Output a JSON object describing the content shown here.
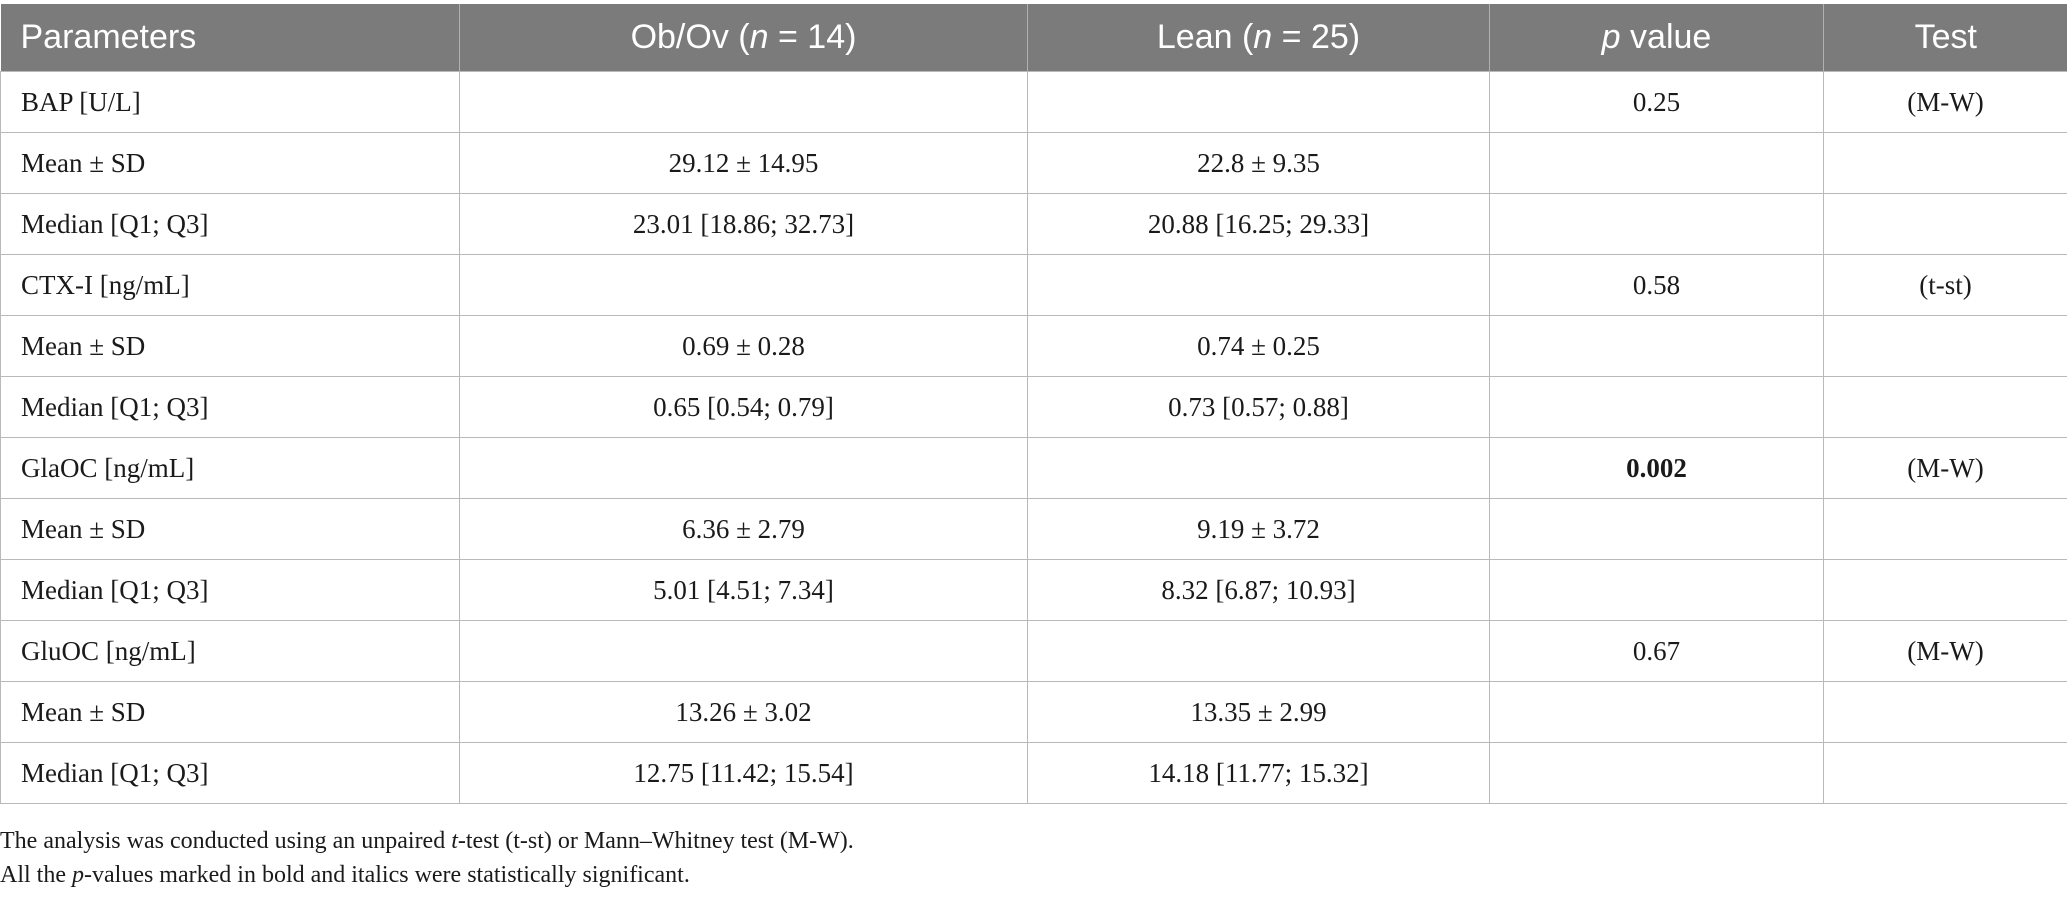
{
  "header": {
    "parameters": "Parameters",
    "g1_prefix": "Ob/Ov (",
    "g1_n": "n",
    "g1_suffix": " = 14)",
    "g2_prefix": "Lean (",
    "g2_n": "n",
    "g2_suffix": " = 25)",
    "p_italic": "p",
    "p_rest": " value",
    "test": "Test"
  },
  "rows": [
    {
      "param": "BAP [U/L]",
      "g1": "",
      "g2": "",
      "p": "0.25",
      "test": "(M-W)"
    },
    {
      "param": "Mean ± SD",
      "g1": "29.12 ± 14.95",
      "g2": "22.8 ± 9.35",
      "p": "",
      "test": ""
    },
    {
      "param": "Median [Q1; Q3]",
      "g1": "23.01 [18.86; 32.73]",
      "g2": "20.88 [16.25; 29.33]",
      "p": "",
      "test": ""
    },
    {
      "param": "CTX-I [ng/mL]",
      "g1": "",
      "g2": "",
      "p": "0.58",
      "test": "(t-st)"
    },
    {
      "param": "Mean ± SD",
      "g1": "0.69 ± 0.28",
      "g2": "0.74 ± 0.25",
      "p": "",
      "test": ""
    },
    {
      "param": "Median [Q1; Q3]",
      "g1": "0.65 [0.54; 0.79]",
      "g2": "0.73 [0.57; 0.88]",
      "p": "",
      "test": ""
    },
    {
      "param": "GlaOC [ng/mL]",
      "g1": "",
      "g2": "",
      "p": "0.002",
      "test": "(M-W)"
    },
    {
      "param": "Mean ± SD",
      "g1": "6.36 ± 2.79",
      "g2": "9.19 ± 3.72",
      "p": "",
      "test": ""
    },
    {
      "param": "Median [Q1; Q3]",
      "g1": "5.01 [4.51; 7.34]",
      "g2": "8.32 [6.87; 10.93]",
      "p": "",
      "test": ""
    },
    {
      "param": "GluOC [ng/mL]",
      "g1": "",
      "g2": "",
      "p": "0.67",
      "test": "(M-W)"
    },
    {
      "param": "Mean ± SD",
      "g1": "13.26 ± 3.02",
      "g2": "13.35 ± 2.99",
      "p": "",
      "test": ""
    },
    {
      "param": "Median [Q1; Q3]",
      "g1": "12.75 [11.42; 15.54]",
      "g2": "14.18 [11.77; 15.32]",
      "p": "",
      "test": ""
    }
  ],
  "notes": {
    "line1_a": "The analysis was conducted using an unpaired ",
    "line1_t": "t",
    "line1_b": "-test (t-st) or Mann–Whitney test (M-W).",
    "line2_a": "All the ",
    "line2_p": "p",
    "line2_b": "-values marked in bold and italics were statistically significant."
  }
}
